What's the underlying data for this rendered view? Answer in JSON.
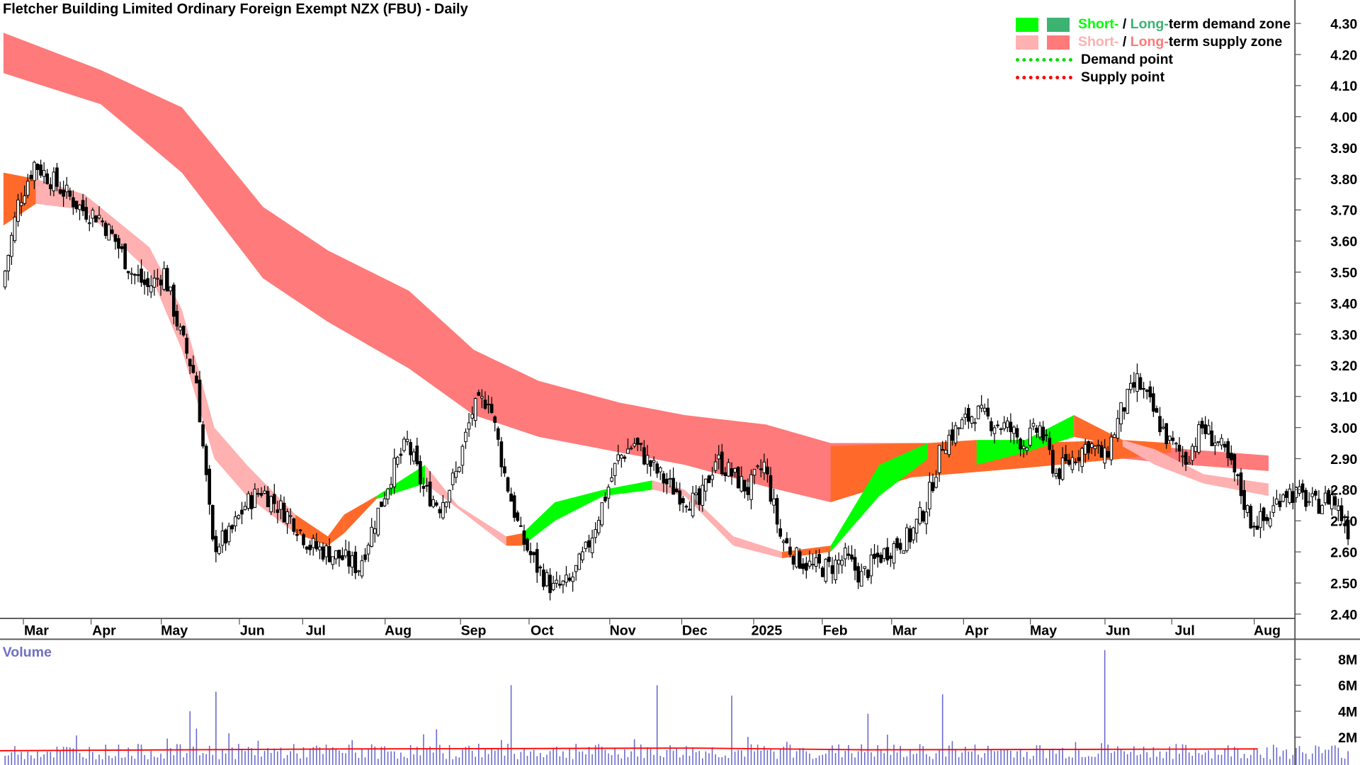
{
  "title": "Fletcher Building Limited Ordinary Foreign Exempt NZX (FBU) - Daily",
  "legend": {
    "demand_zone": {
      "short": "Short-",
      "sep": " / ",
      "long": "Long-",
      "rest": "term demand zone"
    },
    "supply_zone": {
      "short": "Short-",
      "sep": " / ",
      "long": "Long-",
      "rest": "term supply zone"
    },
    "demand_point": "Demand point",
    "supply_point": "Supply point"
  },
  "colors": {
    "short_demand": "#00ff00",
    "long_demand": "#3cb371",
    "short_supply": "#ffb0b0",
    "long_supply": "#ff7a7a",
    "neutral_zone": "#ff6a2a",
    "demand_point": "#00dd00",
    "supply_point": "#ff0000",
    "volume_bar": "#6a6acd",
    "volume_avg": "#ff0000",
    "volume_label": "#7070c0"
  },
  "chart_data": {
    "type": "candlestick",
    "title": "Fletcher Building Limited Ordinary Foreign Exempt NZX (FBU) - Daily",
    "price_axis": {
      "ylim": [
        2.4,
        4.3
      ],
      "ticks": [
        "4.30",
        "4.20",
        "4.10",
        "4.00",
        "3.90",
        "3.80",
        "3.70",
        "3.60",
        "3.50",
        "3.40",
        "3.30",
        "3.20",
        "3.10",
        "3.00",
        "2.90",
        "2.80",
        "2.70",
        "2.60",
        "2.50",
        "2.40"
      ]
    },
    "x_labels": [
      "Mar",
      "Apr",
      "May",
      "Jun",
      "Jul",
      "Aug",
      "Sep",
      "Oct",
      "Nov",
      "Dec",
      "2025",
      "Feb",
      "Mar",
      "Apr",
      "May",
      "Jun",
      "Jul",
      "Aug"
    ],
    "weekly_close": [
      3.45,
      3.72,
      3.85,
      3.8,
      3.75,
      3.7,
      3.68,
      3.6,
      3.5,
      3.45,
      3.5,
      3.3,
      3.15,
      2.62,
      2.65,
      2.75,
      2.8,
      2.75,
      2.7,
      2.62,
      2.6,
      2.58,
      2.55,
      2.7,
      2.85,
      2.95,
      2.8,
      2.75,
      2.85,
      3.05,
      3.1,
      2.85,
      2.65,
      2.55,
      2.48,
      2.5,
      2.6,
      2.75,
      2.9,
      2.95,
      2.88,
      2.82,
      2.78,
      2.75,
      2.9,
      2.85,
      2.8,
      2.88,
      2.65,
      2.58,
      2.55,
      2.55,
      2.58,
      2.52,
      2.58,
      2.62,
      2.65,
      2.75,
      2.95,
      3.0,
      3.05,
      3.02,
      3.0,
      2.95,
      3.0,
      2.85,
      2.9,
      2.95,
      2.9,
      3.05,
      3.15,
      3.05,
      2.95,
      2.9,
      3.0,
      2.95,
      2.85,
      2.7,
      2.7,
      2.8,
      2.78,
      2.75,
      2.78,
      2.67
    ],
    "long_supply_zone": [
      [
        0,
        4.27,
        4.14
      ],
      [
        6,
        4.15,
        4.04
      ],
      [
        11,
        4.03,
        3.82
      ],
      [
        16,
        3.71,
        3.48
      ],
      [
        20,
        3.57,
        3.34
      ],
      [
        25,
        3.44,
        3.19
      ],
      [
        29,
        3.25,
        3.04
      ],
      [
        33,
        3.15,
        2.97
      ],
      [
        38,
        3.08,
        2.92
      ],
      [
        42,
        3.04,
        2.88
      ],
      [
        47,
        3.01,
        2.81
      ],
      [
        51,
        2.95,
        2.76
      ],
      [
        55,
        2.95,
        2.92
      ],
      [
        64,
        2.95,
        2.92
      ],
      [
        69,
        2.95,
        2.9
      ],
      [
        73,
        2.93,
        2.88
      ],
      [
        78,
        2.91,
        2.86
      ]
    ],
    "long_neutral_zone": [
      [
        51,
        2.94,
        2.76
      ],
      [
        56,
        2.95,
        2.84
      ],
      [
        63,
        2.95,
        2.87
      ],
      [
        69,
        2.96,
        2.9
      ],
      [
        72,
        2.95,
        2.92
      ]
    ],
    "short_zone": [
      [
        0,
        3.82,
        3.65,
        "supply"
      ],
      [
        2,
        3.8,
        3.72,
        "neutral"
      ],
      [
        5,
        3.75,
        3.7,
        "supply"
      ],
      [
        9,
        3.58,
        3.5,
        "supply"
      ],
      [
        11,
        3.38,
        3.25,
        "supply"
      ],
      [
        13,
        3.0,
        2.9,
        "supply"
      ],
      [
        15,
        2.88,
        2.78,
        "supply"
      ],
      [
        18,
        2.72,
        2.66,
        "supply"
      ],
      [
        20,
        2.65,
        2.62,
        "neutral"
      ],
      [
        21,
        2.72,
        2.66,
        "neutral"
      ],
      [
        23,
        2.78,
        2.77,
        "neutral"
      ],
      [
        26,
        2.88,
        2.82,
        "demand"
      ],
      [
        28,
        2.75,
        2.74,
        "supply"
      ],
      [
        31,
        2.65,
        2.62,
        "supply"
      ],
      [
        32,
        2.66,
        2.62,
        "neutral"
      ],
      [
        34,
        2.76,
        2.7,
        "demand"
      ],
      [
        37,
        2.8,
        2.78,
        "demand"
      ],
      [
        40,
        2.83,
        2.8,
        "demand"
      ],
      [
        42,
        2.8,
        2.78,
        "supply"
      ],
      [
        45,
        2.65,
        2.62,
        "supply"
      ],
      [
        48,
        2.6,
        2.58,
        "supply"
      ],
      [
        51,
        2.62,
        2.6,
        "neutral"
      ],
      [
        54,
        2.88,
        2.78,
        "demand"
      ],
      [
        57,
        2.95,
        2.9,
        "demand"
      ],
      [
        60,
        2.96,
        2.88,
        "neutral"
      ],
      [
        63,
        2.96,
        2.92,
        "demand"
      ],
      [
        66,
        3.04,
        2.97,
        "demand"
      ],
      [
        69,
        2.96,
        2.94,
        "neutral"
      ],
      [
        71,
        2.93,
        2.88,
        "supply"
      ],
      [
        74,
        2.85,
        2.82,
        "supply"
      ],
      [
        78,
        2.82,
        2.78,
        "supply"
      ]
    ],
    "volume": {
      "label": "Volume",
      "ticks": [
        "8M",
        "6M",
        "4M",
        "2M"
      ],
      "average_millions": 1.1,
      "spikes_millions": [
        [
          11.4,
          4.0
        ],
        [
          13.0,
          5.5
        ],
        [
          31.1,
          6.0
        ],
        [
          40.1,
          6.0
        ],
        [
          44.7,
          5.2
        ],
        [
          53.1,
          3.8
        ],
        [
          57.7,
          5.3
        ],
        [
          67.7,
          8.7
        ]
      ]
    }
  }
}
